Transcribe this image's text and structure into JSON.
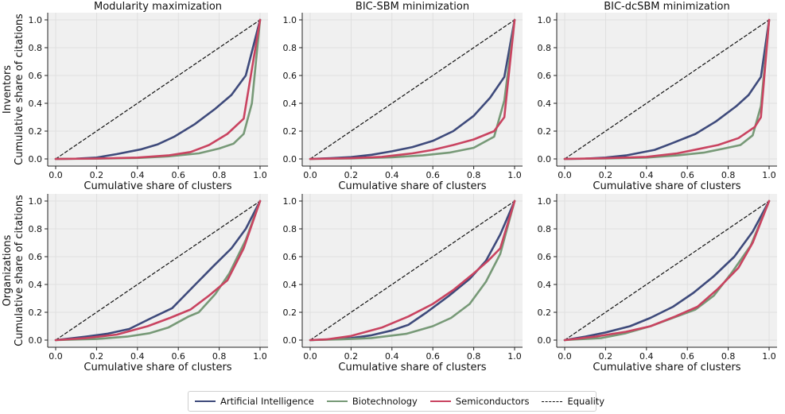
{
  "figure": {
    "column_titles": [
      "Modularity maximization",
      "BIC-SBM minimization",
      "BIC-dcSBM minimization"
    ],
    "row_labels": [
      [
        "Inventors",
        "Cumulative share of citations"
      ],
      [
        "Organizations",
        "Cumulative share of citations"
      ]
    ],
    "series_colors": {
      "Artificial Intelligence": "#3e4a7b",
      "Biotechnology": "#779977",
      "Semiconductors": "#c94360",
      "Equality": "#111111"
    },
    "legend": [
      {
        "label": "Artificial Intelligence",
        "color": "#3e4a7b",
        "style": "solid"
      },
      {
        "label": "Biotechnology",
        "color": "#779977",
        "style": "solid"
      },
      {
        "label": "Semiconductors",
        "color": "#c94360",
        "style": "solid"
      },
      {
        "label": "Equality",
        "color": "#111111",
        "style": "dashed"
      }
    ]
  },
  "chart_data": [
    {
      "type": "line",
      "row": 0,
      "col": 0,
      "title": "Modularity maximization",
      "xlabel": "Cumulative share of clusters",
      "ylabel": "Cumulative share of citations",
      "xlim": [
        0,
        1
      ],
      "ylim": [
        0,
        1
      ],
      "xticks": [
        0.0,
        0.2,
        0.4,
        0.6,
        0.8,
        1.0
      ],
      "yticks": [
        0.0,
        0.2,
        0.4,
        0.6,
        0.8,
        1.0
      ],
      "series": [
        {
          "name": "Artificial Intelligence",
          "x": [
            0,
            0.1,
            0.2,
            0.3,
            0.42,
            0.5,
            0.58,
            0.68,
            0.78,
            0.86,
            0.93,
            1.0
          ],
          "y": [
            0,
            0.002,
            0.01,
            0.035,
            0.07,
            0.105,
            0.16,
            0.25,
            0.36,
            0.46,
            0.6,
            1.0
          ]
        },
        {
          "name": "Biotechnology",
          "x": [
            0,
            0.2,
            0.4,
            0.55,
            0.7,
            0.8,
            0.87,
            0.92,
            0.96,
            1.0
          ],
          "y": [
            0,
            0.002,
            0.007,
            0.018,
            0.04,
            0.075,
            0.11,
            0.18,
            0.4,
            1.0
          ]
        },
        {
          "name": "Semiconductors",
          "x": [
            0,
            0.2,
            0.4,
            0.55,
            0.66,
            0.75,
            0.84,
            0.92,
            1.0
          ],
          "y": [
            0,
            0.003,
            0.01,
            0.025,
            0.05,
            0.1,
            0.18,
            0.29,
            1.0
          ]
        },
        {
          "name": "Equality",
          "x": [
            0,
            1
          ],
          "y": [
            0,
            1
          ]
        }
      ]
    },
    {
      "type": "line",
      "row": 0,
      "col": 1,
      "title": "BIC-SBM minimization",
      "xlabel": "Cumulative share of clusters",
      "ylabel": "Cumulative share of citations",
      "xlim": [
        0,
        1
      ],
      "ylim": [
        0,
        1
      ],
      "xticks": [
        0.0,
        0.2,
        0.4,
        0.6,
        0.8,
        1.0
      ],
      "yticks": [
        0.0,
        0.2,
        0.4,
        0.6,
        0.8,
        1.0
      ],
      "series": [
        {
          "name": "Artificial Intelligence",
          "x": [
            0,
            0.1,
            0.2,
            0.3,
            0.4,
            0.5,
            0.6,
            0.7,
            0.8,
            0.88,
            0.95,
            1.0
          ],
          "y": [
            0,
            0.005,
            0.013,
            0.03,
            0.055,
            0.085,
            0.13,
            0.2,
            0.31,
            0.44,
            0.59,
            1.0
          ]
        },
        {
          "name": "Biotechnology",
          "x": [
            0,
            0.2,
            0.4,
            0.55,
            0.68,
            0.8,
            0.9,
            0.95,
            1.0
          ],
          "y": [
            0,
            0.003,
            0.012,
            0.025,
            0.045,
            0.08,
            0.16,
            0.42,
            1.0
          ]
        },
        {
          "name": "Semiconductors",
          "x": [
            0,
            0.2,
            0.35,
            0.5,
            0.6,
            0.7,
            0.8,
            0.9,
            0.95,
            1.0
          ],
          "y": [
            0,
            0.005,
            0.015,
            0.04,
            0.065,
            0.1,
            0.14,
            0.2,
            0.3,
            1.0
          ]
        },
        {
          "name": "Equality",
          "x": [
            0,
            1
          ],
          "y": [
            0,
            1
          ]
        }
      ]
    },
    {
      "type": "line",
      "row": 0,
      "col": 2,
      "title": "BIC-dcSBM minimization",
      "xlabel": "Cumulative share of clusters",
      "ylabel": "Cumulative share of citations",
      "xlim": [
        0,
        1
      ],
      "ylim": [
        0,
        1
      ],
      "xticks": [
        0.0,
        0.2,
        0.4,
        0.6,
        0.8,
        1.0
      ],
      "yticks": [
        0.0,
        0.2,
        0.4,
        0.6,
        0.8,
        1.0
      ],
      "series": [
        {
          "name": "Artificial Intelligence",
          "x": [
            0,
            0.1,
            0.2,
            0.3,
            0.44,
            0.52,
            0.64,
            0.74,
            0.84,
            0.9,
            0.96,
            1.0
          ],
          "y": [
            0,
            0.002,
            0.01,
            0.025,
            0.065,
            0.11,
            0.18,
            0.27,
            0.38,
            0.46,
            0.59,
            1.0
          ]
        },
        {
          "name": "Biotechnology",
          "x": [
            0,
            0.2,
            0.4,
            0.55,
            0.68,
            0.78,
            0.86,
            0.92,
            0.96,
            1.0
          ],
          "y": [
            0,
            0.003,
            0.01,
            0.025,
            0.045,
            0.075,
            0.1,
            0.17,
            0.38,
            1.0
          ]
        },
        {
          "name": "Semiconductors",
          "x": [
            0,
            0.2,
            0.4,
            0.55,
            0.65,
            0.75,
            0.85,
            0.93,
            0.96,
            1.0
          ],
          "y": [
            0,
            0.005,
            0.015,
            0.04,
            0.07,
            0.1,
            0.15,
            0.23,
            0.3,
            1.0
          ]
        },
        {
          "name": "Equality",
          "x": [
            0,
            1
          ],
          "y": [
            0,
            1
          ]
        }
      ]
    },
    {
      "type": "line",
      "row": 1,
      "col": 0,
      "title": "",
      "xlabel": "Cumulative share of clusters",
      "ylabel": "Cumulative share of citations",
      "xlim": [
        0,
        1
      ],
      "ylim": [
        0,
        1
      ],
      "xticks": [
        0.0,
        0.2,
        0.4,
        0.6,
        0.8,
        1.0
      ],
      "yticks": [
        0.0,
        0.2,
        0.4,
        0.6,
        0.8,
        1.0
      ],
      "series": [
        {
          "name": "Artificial Intelligence",
          "x": [
            0,
            0.15,
            0.25,
            0.36,
            0.47,
            0.57,
            0.67,
            0.77,
            0.86,
            0.93,
            1.0
          ],
          "y": [
            0,
            0.025,
            0.045,
            0.08,
            0.16,
            0.23,
            0.38,
            0.53,
            0.66,
            0.8,
            1.0
          ]
        },
        {
          "name": "Biotechnology",
          "x": [
            0,
            0.2,
            0.35,
            0.46,
            0.55,
            0.65,
            0.7,
            0.78,
            0.85,
            0.93,
            1.0
          ],
          "y": [
            0,
            0.008,
            0.025,
            0.05,
            0.09,
            0.17,
            0.2,
            0.33,
            0.48,
            0.72,
            1.0
          ]
        },
        {
          "name": "Semiconductors",
          "x": [
            0,
            0.15,
            0.3,
            0.45,
            0.56,
            0.66,
            0.75,
            0.84,
            0.92,
            1.0
          ],
          "y": [
            0,
            0.015,
            0.04,
            0.1,
            0.16,
            0.22,
            0.32,
            0.43,
            0.66,
            1.0
          ]
        },
        {
          "name": "Equality",
          "x": [
            0,
            1
          ],
          "y": [
            0,
            1
          ]
        }
      ]
    },
    {
      "type": "line",
      "row": 1,
      "col": 1,
      "title": "",
      "xlabel": "Cumulative share of clusters",
      "ylabel": "Cumulative share of citations",
      "xlim": [
        0,
        1
      ],
      "ylim": [
        0,
        1
      ],
      "xticks": [
        0.0,
        0.2,
        0.4,
        0.6,
        0.8,
        1.0
      ],
      "yticks": [
        0.0,
        0.2,
        0.4,
        0.6,
        0.8,
        1.0
      ],
      "series": [
        {
          "name": "Artificial Intelligence",
          "x": [
            0,
            0.1,
            0.2,
            0.3,
            0.4,
            0.48,
            0.57,
            0.68,
            0.78,
            0.86,
            0.93,
            1.0
          ],
          "y": [
            0,
            0.005,
            0.015,
            0.035,
            0.07,
            0.11,
            0.2,
            0.32,
            0.44,
            0.57,
            0.76,
            1.0
          ]
        },
        {
          "name": "Biotechnology",
          "x": [
            0,
            0.15,
            0.3,
            0.47,
            0.6,
            0.69,
            0.78,
            0.86,
            0.93,
            1.0
          ],
          "y": [
            0,
            0.005,
            0.015,
            0.045,
            0.1,
            0.16,
            0.26,
            0.42,
            0.62,
            1.0
          ]
        },
        {
          "name": "Semiconductors",
          "x": [
            0,
            0.08,
            0.2,
            0.35,
            0.48,
            0.6,
            0.7,
            0.8,
            0.87,
            0.93,
            1.0
          ],
          "y": [
            0,
            0.005,
            0.03,
            0.09,
            0.17,
            0.26,
            0.36,
            0.48,
            0.57,
            0.66,
            1.0
          ]
        },
        {
          "name": "Equality",
          "x": [
            0,
            1
          ],
          "y": [
            0,
            1
          ]
        }
      ]
    },
    {
      "type": "line",
      "row": 1,
      "col": 2,
      "title": "",
      "xlabel": "Cumulative share of clusters",
      "ylabel": "Cumulative share of citations",
      "xlim": [
        0,
        1
      ],
      "ylim": [
        0,
        1
      ],
      "xticks": [
        0.0,
        0.2,
        0.4,
        0.6,
        0.8,
        1.0
      ],
      "yticks": [
        0.0,
        0.2,
        0.4,
        0.6,
        0.8,
        1.0
      ],
      "series": [
        {
          "name": "Artificial Intelligence",
          "x": [
            0,
            0.1,
            0.2,
            0.32,
            0.42,
            0.53,
            0.63,
            0.73,
            0.83,
            0.92,
            1.0
          ],
          "y": [
            0,
            0.025,
            0.055,
            0.1,
            0.16,
            0.24,
            0.34,
            0.46,
            0.6,
            0.78,
            1.0
          ]
        },
        {
          "name": "Biotechnology",
          "x": [
            0,
            0.18,
            0.3,
            0.42,
            0.53,
            0.64,
            0.73,
            0.82,
            0.91,
            1.0
          ],
          "y": [
            0,
            0.015,
            0.05,
            0.1,
            0.16,
            0.22,
            0.32,
            0.49,
            0.68,
            1.0
          ]
        },
        {
          "name": "Semiconductors",
          "x": [
            0,
            0.15,
            0.3,
            0.42,
            0.54,
            0.65,
            0.75,
            0.85,
            0.92,
            1.0
          ],
          "y": [
            0,
            0.025,
            0.06,
            0.1,
            0.17,
            0.24,
            0.37,
            0.52,
            0.7,
            1.0
          ]
        },
        {
          "name": "Equality",
          "x": [
            0,
            1
          ],
          "y": [
            0,
            1
          ]
        }
      ]
    }
  ]
}
